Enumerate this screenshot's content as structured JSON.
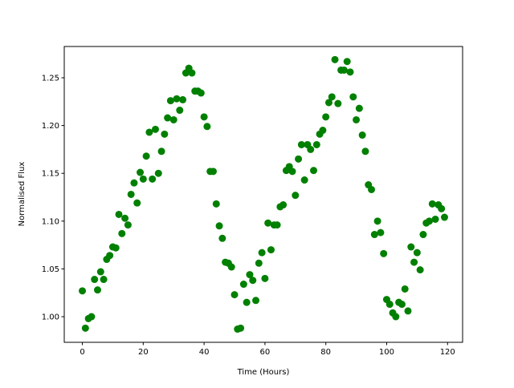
{
  "chart_data": {
    "type": "scatter",
    "xlabel": "Time (Hours)",
    "ylabel": "Normalised Flux",
    "color": "#008000",
    "x": [
      0,
      1,
      2,
      3,
      4,
      5,
      6,
      7,
      8,
      9,
      10,
      11,
      12,
      13,
      14,
      15,
      16,
      17,
      18,
      19,
      20,
      21,
      22,
      23,
      24,
      25,
      26,
      27,
      28,
      29,
      30,
      31,
      32,
      33,
      34,
      35,
      36,
      37,
      38,
      39,
      40,
      41,
      42,
      43,
      44,
      45,
      46,
      47,
      48,
      49,
      50,
      51,
      52,
      53,
      54,
      55,
      56,
      57,
      58,
      59,
      60,
      61,
      62,
      63,
      64,
      65,
      66,
      67,
      68,
      69,
      70,
      71,
      72,
      73,
      74,
      75,
      76,
      77,
      78,
      79,
      80,
      81,
      82,
      83,
      84,
      85,
      86,
      87,
      88,
      89,
      90,
      91,
      92,
      93,
      94,
      95,
      96,
      97,
      98,
      99,
      100,
      101,
      102,
      103,
      104,
      105,
      106,
      107,
      108,
      109,
      110,
      111,
      112,
      113,
      114,
      115,
      116,
      117,
      118,
      119
    ],
    "values": [
      1.027,
      0.988,
      0.998,
      1.0,
      1.039,
      1.028,
      1.047,
      1.039,
      1.06,
      1.064,
      1.073,
      1.072,
      1.107,
      1.087,
      1.103,
      1.096,
      1.128,
      1.14,
      1.119,
      1.151,
      1.144,
      1.168,
      1.193,
      1.144,
      1.196,
      1.15,
      1.173,
      1.191,
      1.208,
      1.226,
      1.206,
      1.228,
      1.216,
      1.227,
      1.255,
      1.26,
      1.255,
      1.236,
      1.236,
      1.234,
      1.209,
      1.199,
      1.152,
      1.152,
      1.118,
      1.095,
      1.082,
      1.057,
      1.056,
      1.052,
      1.023,
      0.987,
      0.988,
      1.034,
      1.015,
      1.044,
      1.038,
      1.017,
      1.056,
      1.067,
      1.04,
      1.098,
      1.07,
      1.096,
      1.096,
      1.115,
      1.117,
      1.153,
      1.157,
      1.152,
      1.127,
      1.165,
      1.18,
      1.143,
      1.18,
      1.175,
      1.153,
      1.18,
      1.191,
      1.195,
      1.209,
      1.224,
      1.23,
      1.269,
      1.223,
      1.258,
      1.258,
      1.267,
      1.256,
      1.23,
      1.206,
      1.218,
      1.19,
      1.173,
      1.138,
      1.133,
      1.086,
      1.1,
      1.088,
      1.066,
      1.018,
      1.013,
      1.004,
      1.0,
      1.015,
      1.013,
      1.029,
      1.006,
      1.073,
      1.057,
      1.067,
      1.049,
      1.086,
      1.098,
      1.1,
      1.118,
      1.102,
      1.117,
      1.113,
      1.104
    ],
    "xlim": [
      -5.95,
      124.95
    ],
    "xticks": [
      0,
      20,
      40,
      60,
      80,
      100,
      120
    ],
    "ylim": [
      0.9732,
      1.2827
    ],
    "yticks": [
      {
        "value": 1.0,
        "label": "1.00"
      },
      1.05,
      {
        "value": 1.1,
        "label": "1.10"
      },
      1.15,
      {
        "value": 1.2,
        "label": "1.20"
      },
      1.25
    ]
  }
}
